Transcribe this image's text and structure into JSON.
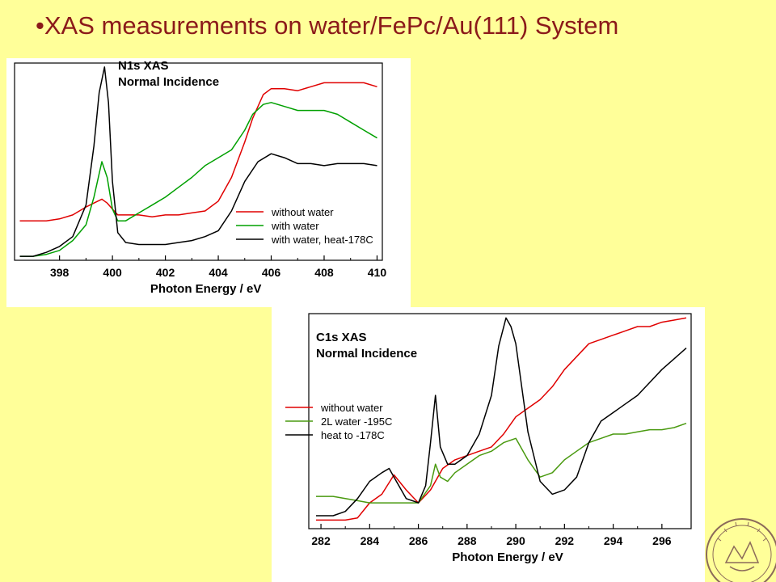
{
  "slide": {
    "bullet": "•",
    "title": "XAS measurements on water/FePc/Au(111) System"
  },
  "chart_data": [
    {
      "type": "line",
      "title": "N1s XAS",
      "subtitle": "Normal Incidence",
      "xlabel": "Photon Energy / eV",
      "ylabel": "",
      "xlim": [
        396.3,
        410.2
      ],
      "ylim": [
        0,
        1
      ],
      "x_ticks": [
        398,
        400,
        402,
        404,
        406,
        408,
        410
      ],
      "grid": false,
      "legend_position": "lower-right",
      "series": [
        {
          "name": "without water",
          "color": "#e00000",
          "x": [
            396.5,
            397,
            397.5,
            398,
            398.5,
            399,
            399.3,
            399.6,
            399.8,
            400,
            400.2,
            400.5,
            401,
            401.5,
            402,
            402.5,
            403,
            403.5,
            404,
            404.5,
            405,
            405.3,
            405.7,
            406,
            406.5,
            407,
            407.5,
            408,
            408.5,
            409,
            409.5,
            410
          ],
          "y": [
            0.2,
            0.2,
            0.2,
            0.21,
            0.23,
            0.27,
            0.29,
            0.31,
            0.29,
            0.26,
            0.23,
            0.23,
            0.23,
            0.22,
            0.23,
            0.23,
            0.24,
            0.25,
            0.3,
            0.42,
            0.6,
            0.72,
            0.84,
            0.87,
            0.87,
            0.86,
            0.88,
            0.9,
            0.9,
            0.9,
            0.9,
            0.88
          ]
        },
        {
          "name": "with water",
          "color": "#00a000",
          "x": [
            396.5,
            397,
            397.5,
            398,
            398.5,
            399,
            399.3,
            399.6,
            399.8,
            400,
            400.2,
            400.5,
            401,
            401.5,
            402,
            402.5,
            403,
            403.5,
            404,
            404.5,
            405,
            405.3,
            405.7,
            406,
            406.5,
            407,
            407.5,
            408,
            408.5,
            409,
            409.5,
            410
          ],
          "y": [
            0.02,
            0.02,
            0.03,
            0.05,
            0.1,
            0.18,
            0.32,
            0.5,
            0.42,
            0.26,
            0.2,
            0.2,
            0.24,
            0.28,
            0.32,
            0.37,
            0.42,
            0.48,
            0.52,
            0.56,
            0.66,
            0.74,
            0.79,
            0.8,
            0.78,
            0.76,
            0.76,
            0.76,
            0.74,
            0.7,
            0.66,
            0.62
          ]
        },
        {
          "name": "with water, heat-178C",
          "color": "#000000",
          "x": [
            396.5,
            397,
            397.5,
            398,
            398.5,
            399,
            399.3,
            399.5,
            399.7,
            399.85,
            400,
            400.2,
            400.5,
            401,
            401.5,
            402,
            402.5,
            403,
            403.5,
            404,
            404.5,
            405,
            405.5,
            406,
            406.5,
            407,
            407.5,
            408,
            408.5,
            409,
            409.5,
            410
          ],
          "y": [
            0.02,
            0.02,
            0.04,
            0.07,
            0.12,
            0.28,
            0.58,
            0.85,
            0.98,
            0.8,
            0.4,
            0.14,
            0.09,
            0.08,
            0.08,
            0.08,
            0.09,
            0.1,
            0.12,
            0.15,
            0.25,
            0.4,
            0.5,
            0.54,
            0.52,
            0.49,
            0.49,
            0.48,
            0.49,
            0.49,
            0.49,
            0.48
          ]
        }
      ]
    },
    {
      "type": "line",
      "title": "C1s XAS",
      "subtitle": "Normal Incidence",
      "xlabel": "Photon Energy / eV",
      "ylabel": "",
      "xlim": [
        281.5,
        297.2
      ],
      "ylim": [
        0,
        1
      ],
      "x_ticks": [
        282,
        284,
        286,
        288,
        290,
        292,
        294,
        296
      ],
      "grid": false,
      "legend_position": "left-middle",
      "series": [
        {
          "name": "without water",
          "color": "#e00000",
          "x": [
            281.8,
            282.5,
            283,
            283.5,
            284,
            284.5,
            285,
            285.5,
            286,
            286.5,
            287,
            287.5,
            288,
            288.5,
            289,
            289.5,
            290,
            290.5,
            291,
            291.5,
            292,
            292.5,
            293,
            293.5,
            294,
            294.5,
            295,
            295.5,
            296,
            296.5,
            297
          ],
          "y": [
            0.04,
            0.04,
            0.04,
            0.05,
            0.12,
            0.16,
            0.25,
            0.18,
            0.12,
            0.18,
            0.28,
            0.32,
            0.34,
            0.36,
            0.38,
            0.44,
            0.52,
            0.56,
            0.6,
            0.66,
            0.74,
            0.8,
            0.86,
            0.88,
            0.9,
            0.92,
            0.94,
            0.94,
            0.96,
            0.97,
            0.98
          ]
        },
        {
          "name": "2L water -195C",
          "color": "#4a9a10",
          "x": [
            281.8,
            282.5,
            283,
            283.5,
            284,
            284.5,
            285,
            285.5,
            286,
            286.5,
            286.7,
            286.9,
            287.2,
            287.5,
            288,
            288.5,
            289,
            289.5,
            290,
            290.5,
            291,
            291.5,
            292,
            292.5,
            293,
            293.5,
            294,
            294.5,
            295,
            295.5,
            296,
            296.5,
            297
          ],
          "y": [
            0.15,
            0.15,
            0.14,
            0.13,
            0.12,
            0.12,
            0.12,
            0.12,
            0.12,
            0.2,
            0.3,
            0.24,
            0.22,
            0.26,
            0.3,
            0.34,
            0.36,
            0.4,
            0.42,
            0.32,
            0.24,
            0.26,
            0.32,
            0.36,
            0.4,
            0.42,
            0.44,
            0.44,
            0.45,
            0.46,
            0.46,
            0.47,
            0.49
          ]
        },
        {
          "name": "heat to -178C",
          "color": "#000000",
          "x": [
            281.8,
            282.5,
            283,
            283.5,
            284,
            284.5,
            284.8,
            285,
            285.5,
            286,
            286.3,
            286.5,
            286.7,
            286.9,
            287.2,
            287.5,
            288,
            288.5,
            289,
            289.3,
            289.6,
            289.8,
            290,
            290.5,
            291,
            291.5,
            292,
            292.5,
            293,
            293.5,
            294,
            294.5,
            295,
            295.5,
            296,
            296.5,
            297
          ],
          "y": [
            0.06,
            0.06,
            0.08,
            0.14,
            0.22,
            0.26,
            0.28,
            0.24,
            0.14,
            0.12,
            0.2,
            0.4,
            0.62,
            0.38,
            0.3,
            0.3,
            0.34,
            0.44,
            0.62,
            0.85,
            0.98,
            0.94,
            0.86,
            0.45,
            0.22,
            0.16,
            0.18,
            0.24,
            0.4,
            0.5,
            0.54,
            0.58,
            0.62,
            0.68,
            0.74,
            0.79,
            0.84
          ]
        }
      ]
    }
  ]
}
